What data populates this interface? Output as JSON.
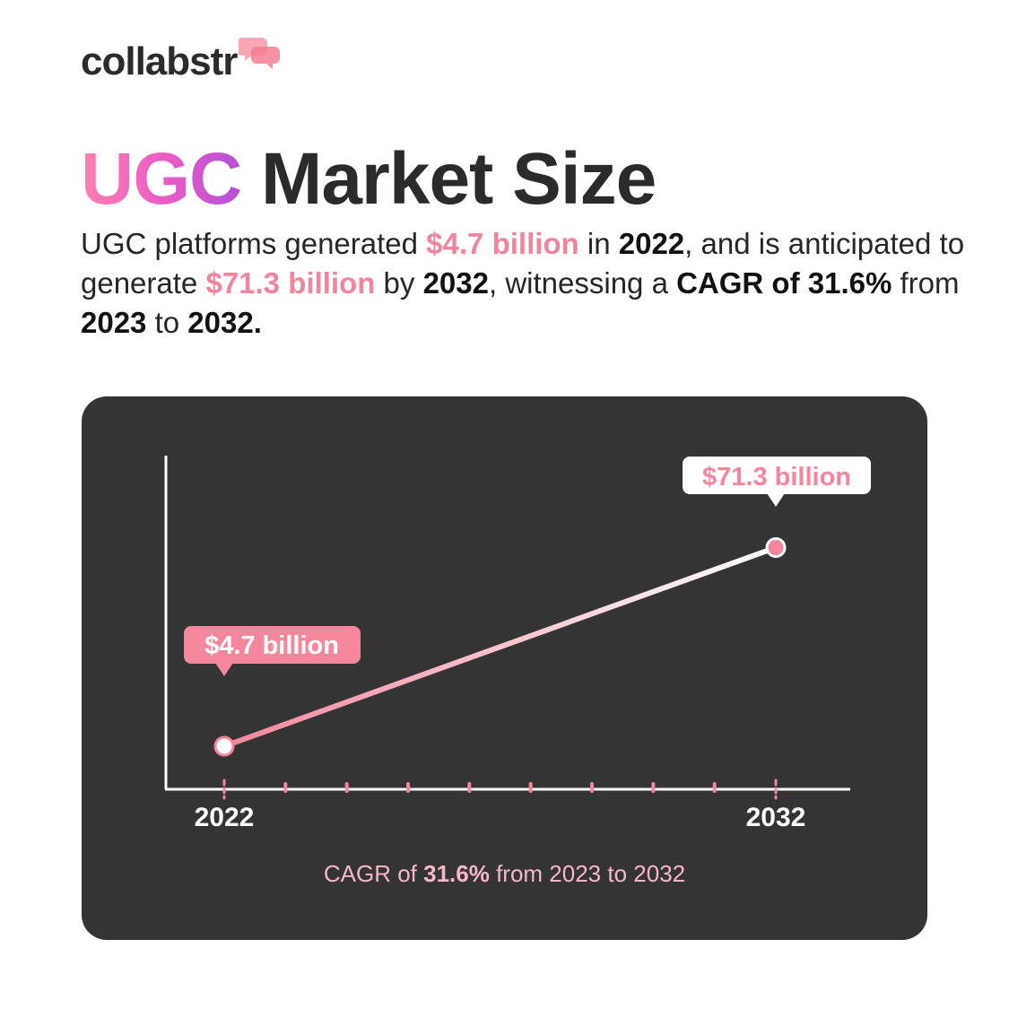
{
  "brand": {
    "name": "collabstr"
  },
  "title": {
    "highlight": "UGC",
    "rest": "Market Size"
  },
  "description": {
    "t1": "UGC platforms generated ",
    "v1": "$4.7 billion",
    "t2": " in ",
    "y1": "2022",
    "t3": ", and is anticipated to generate ",
    "v2": "$71.3 billion",
    "t4": " by ",
    "y2": "2032",
    "t5": ", witnessing a ",
    "cagr": "CAGR of 31.6%",
    "t6": " from ",
    "y3": "2023",
    "t7": " to ",
    "y4": "2032."
  },
  "chart_note": {
    "prefix": "CAGR of ",
    "rate": "31.6%",
    "suffix": " from 2023 to 2032"
  },
  "colors": {
    "accent": "#f2849b",
    "card_bg": "#343434",
    "axis": "#ffffff",
    "note": "#f7b7c5"
  },
  "chart_data": {
    "type": "line",
    "x": [
      2022,
      2032
    ],
    "y": [
      4.7,
      71.3
    ],
    "data_labels": [
      "$4.7 billion",
      "$71.3 billion"
    ],
    "tick_labels": [
      "2022",
      "2032"
    ],
    "minor_ticks": 8,
    "xlim": [
      2022,
      2032
    ],
    "unit": "billion USD",
    "title": "",
    "xlabel": "",
    "ylabel": "",
    "grid": false,
    "legend": "none"
  }
}
